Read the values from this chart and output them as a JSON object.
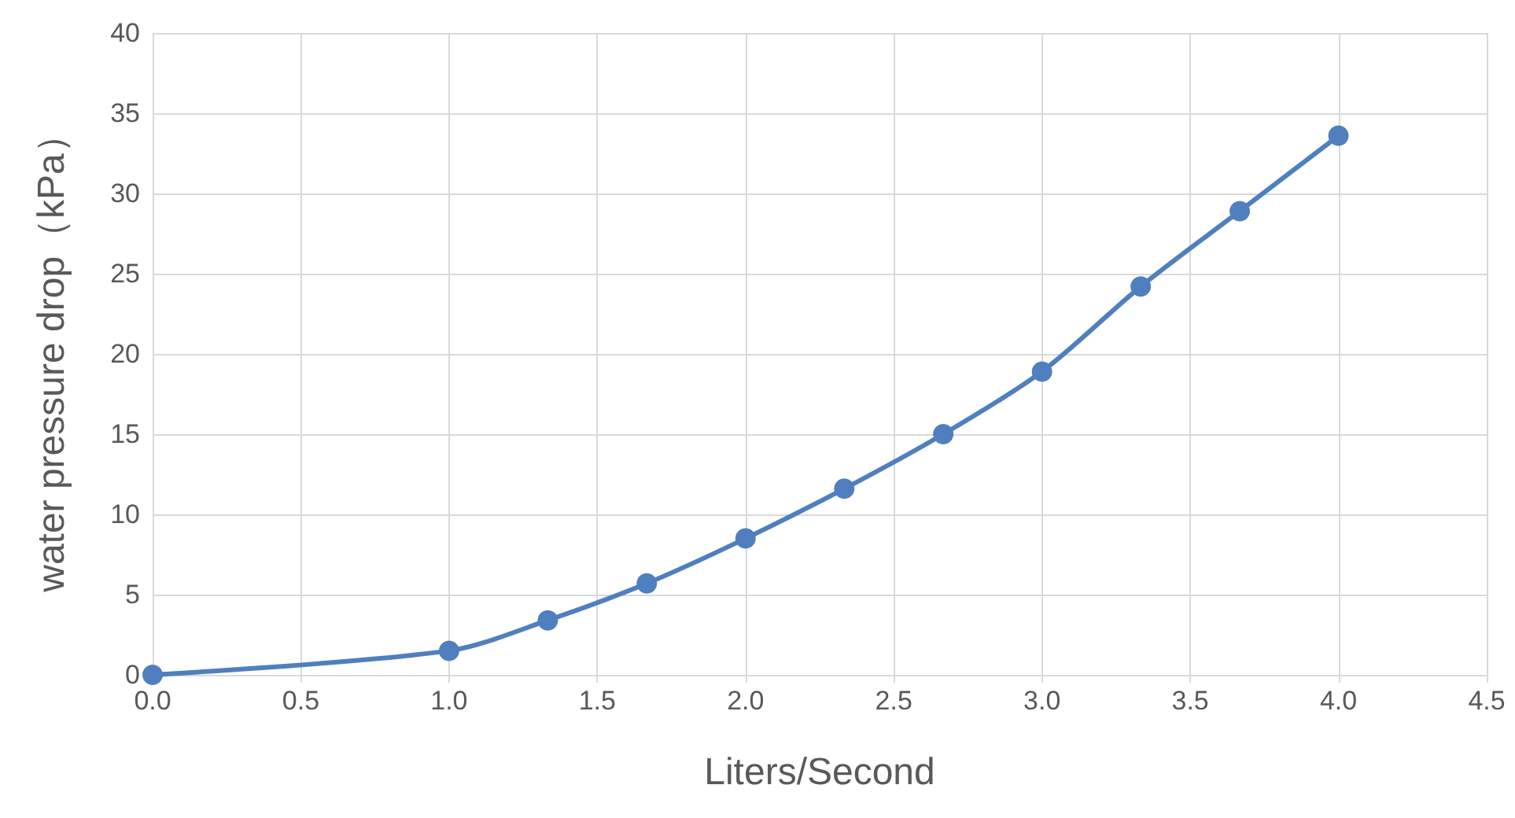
{
  "chart_data": {
    "type": "line",
    "xlabel": "Liters/Second",
    "ylabel": "water pressure drop（kPa）",
    "x": [
      0,
      1,
      1.333,
      1.667,
      2,
      2.333,
      2.667,
      3,
      3.333,
      3.667,
      4
    ],
    "series": [
      {
        "color": "#4f7fbf",
        "values": [
          0,
          1.5,
          3.4,
          5.7,
          8.5,
          11.6,
          15.0,
          18.9,
          24.2,
          28.9,
          33.6
        ]
      }
    ],
    "xlim": [
      0,
      4.5
    ],
    "xticks": [
      {
        "value": 0,
        "label": "0.0"
      },
      {
        "value": 0.5,
        "label": "0.5"
      },
      {
        "value": 1,
        "label": "1.0"
      },
      {
        "value": 1.5,
        "label": "1.5"
      },
      {
        "value": 2,
        "label": "2.0"
      },
      {
        "value": 2.5,
        "label": "2.5"
      },
      {
        "value": 3,
        "label": "3.0"
      },
      {
        "value": 3.5,
        "label": "3.5"
      },
      {
        "value": 4,
        "label": "4.0"
      },
      {
        "value": 4.5,
        "label": "4.5"
      }
    ],
    "ylim": [
      0,
      40
    ],
    "yticks": [
      0,
      5,
      10,
      15,
      20,
      25,
      30,
      35,
      40
    ],
    "grid": true,
    "marker": "circle",
    "line_style": "solid"
  }
}
